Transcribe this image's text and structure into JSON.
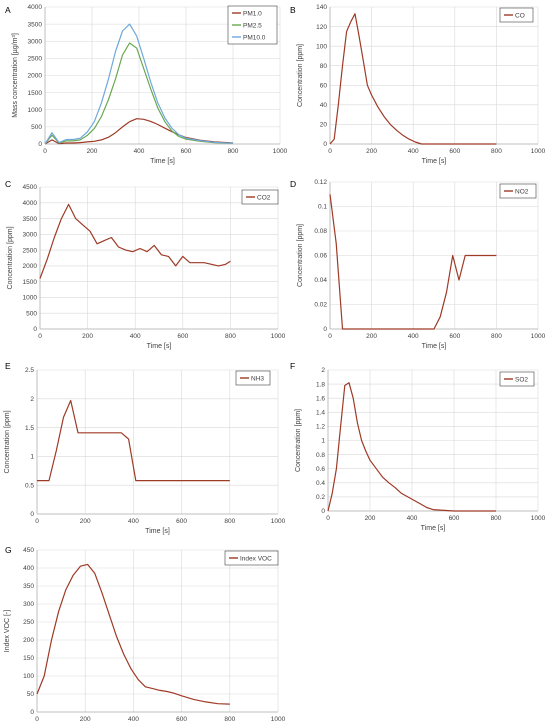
{
  "colors": {
    "pm1": "#9e3a26",
    "pm25": "#6aa84f",
    "pm10": "#6fa8dc",
    "gas": "#9e3a26"
  },
  "chart_data": [
    {
      "id": "A",
      "letter": "A",
      "type": "line",
      "xlabel": "Time [s]",
      "ylabel": "Mass concentration [µg/m³]",
      "xlim": [
        0,
        1000
      ],
      "ylim": [
        0,
        4000
      ],
      "xticks": [
        0,
        200,
        400,
        600,
        800,
        1000
      ],
      "yticks": [
        0,
        500,
        1000,
        1500,
        2000,
        2500,
        3000,
        3500,
        4000
      ],
      "legend": "top-right",
      "series": [
        {
          "name": "PM1.0",
          "color": "#9e3a26",
          "x": [
            0,
            30,
            60,
            90,
            120,
            150,
            180,
            210,
            240,
            270,
            300,
            330,
            360,
            390,
            420,
            450,
            480,
            510,
            540,
            570,
            600,
            660,
            720,
            800
          ],
          "y": [
            0,
            120,
            10,
            30,
            30,
            40,
            60,
            80,
            120,
            200,
            330,
            500,
            650,
            740,
            720,
            660,
            570,
            460,
            360,
            270,
            190,
            110,
            60,
            30
          ]
        },
        {
          "name": "PM2.5",
          "color": "#6aa84f",
          "x": [
            0,
            30,
            60,
            90,
            120,
            150,
            180,
            210,
            240,
            270,
            300,
            330,
            360,
            390,
            420,
            450,
            480,
            510,
            540,
            570,
            600,
            660,
            720,
            800
          ],
          "y": [
            0,
            260,
            30,
            90,
            90,
            120,
            250,
            450,
            800,
            1300,
            1900,
            2600,
            2950,
            2800,
            2200,
            1600,
            1050,
            650,
            380,
            220,
            140,
            80,
            40,
            20
          ]
        },
        {
          "name": "PM10.0",
          "color": "#6fa8dc",
          "x": [
            0,
            30,
            60,
            90,
            120,
            150,
            180,
            210,
            240,
            270,
            300,
            330,
            360,
            390,
            420,
            450,
            480,
            510,
            540,
            570,
            600,
            660,
            720,
            800
          ],
          "y": [
            0,
            330,
            40,
            130,
            130,
            170,
            350,
            650,
            1200,
            1900,
            2700,
            3300,
            3500,
            3150,
            2500,
            1800,
            1200,
            760,
            460,
            270,
            170,
            100,
            50,
            20
          ]
        }
      ]
    },
    {
      "id": "B",
      "letter": "B",
      "type": "line",
      "xlabel": "Time [s]",
      "ylabel": "Concentration [ppm]",
      "xlim": [
        0,
        1000
      ],
      "ylim": [
        0,
        140
      ],
      "xticks": [
        0,
        200,
        400,
        600,
        800,
        1000
      ],
      "yticks": [
        0,
        20,
        40,
        60,
        80,
        100,
        120,
        140
      ],
      "legend": "top-right",
      "series": [
        {
          "name": "CO",
          "color": "#9e3a26",
          "x": [
            0,
            20,
            40,
            60,
            80,
            100,
            120,
            140,
            160,
            180,
            200,
            230,
            260,
            290,
            320,
            350,
            380,
            410,
            440,
            470,
            500,
            550,
            600,
            650,
            700,
            800
          ],
          "y": [
            0,
            5,
            40,
            80,
            115,
            125,
            133,
            110,
            85,
            60,
            50,
            38,
            28,
            20,
            14,
            9,
            5,
            2,
            0,
            0,
            0,
            0,
            0,
            0,
            0,
            0
          ]
        }
      ]
    },
    {
      "id": "C",
      "letter": "C",
      "type": "line",
      "xlabel": "Time [s]",
      "ylabel": "Concentration [ppm]",
      "xlim": [
        0,
        1000
      ],
      "ylim": [
        0,
        4500
      ],
      "xticks": [
        0,
        200,
        400,
        600,
        800,
        1000
      ],
      "yticks": [
        0,
        500,
        1000,
        1500,
        2000,
        2500,
        3000,
        3500,
        4000,
        4500
      ],
      "legend": "top-right",
      "series": [
        {
          "name": "CO2",
          "color": "#9e3a26",
          "x": [
            0,
            30,
            60,
            90,
            120,
            150,
            180,
            210,
            240,
            270,
            300,
            330,
            360,
            390,
            420,
            450,
            480,
            510,
            540,
            570,
            600,
            630,
            660,
            690,
            720,
            750,
            780,
            800
          ],
          "y": [
            1600,
            2200,
            2900,
            3500,
            3950,
            3500,
            3300,
            3100,
            2700,
            2800,
            2900,
            2600,
            2500,
            2450,
            2550,
            2450,
            2650,
            2350,
            2300,
            2000,
            2300,
            2100,
            2100,
            2100,
            2050,
            2000,
            2050,
            2150
          ]
        }
      ]
    },
    {
      "id": "D",
      "letter": "D",
      "type": "line",
      "xlabel": "Time [s]",
      "ylabel": "Concentration [ppm]",
      "xlim": [
        0,
        1000
      ],
      "ylim": [
        0,
        0.12
      ],
      "xticks": [
        0,
        200,
        400,
        600,
        800,
        1000
      ],
      "yticks": [
        0,
        0.02,
        0.04,
        0.06,
        0.08,
        0.1,
        0.12
      ],
      "legend": "top-right",
      "series": [
        {
          "name": "NO2",
          "color": "#9e3a26",
          "x": [
            0,
            30,
            60,
            90,
            120,
            200,
            300,
            400,
            500,
            530,
            560,
            590,
            620,
            650,
            700,
            800
          ],
          "y": [
            0.11,
            0.07,
            0,
            0,
            0,
            0,
            0,
            0,
            0,
            0.01,
            0.03,
            0.06,
            0.04,
            0.06,
            0.06,
            0.06
          ]
        }
      ]
    },
    {
      "id": "E",
      "letter": "E",
      "type": "line",
      "xlabel": "Time [s]",
      "ylabel": "Concentration [ppm]",
      "xlim": [
        0,
        1000
      ],
      "ylim": [
        0,
        2.5
      ],
      "xticks": [
        0,
        200,
        400,
        600,
        800,
        1000
      ],
      "yticks": [
        0,
        0.5,
        1,
        1.5,
        2,
        2.5
      ],
      "legend": "top-right",
      "series": [
        {
          "name": "NH3",
          "color": "#9e3a26",
          "x": [
            0,
            20,
            50,
            80,
            110,
            140,
            170,
            200,
            230,
            260,
            290,
            320,
            350,
            380,
            410,
            500,
            600,
            700,
            800
          ],
          "y": [
            0.58,
            0.58,
            0.58,
            1.1,
            1.68,
            1.97,
            1.41,
            1.41,
            1.41,
            1.41,
            1.41,
            1.41,
            1.41,
            1.3,
            0.58,
            0.58,
            0.58,
            0.58,
            0.58
          ]
        }
      ]
    },
    {
      "id": "F",
      "letter": "F",
      "type": "line",
      "xlabel": "Time [s]",
      "ylabel": "Concentration [ppm]",
      "xlim": [
        0,
        1000
      ],
      "ylim": [
        0,
        2
      ],
      "xticks": [
        0,
        200,
        400,
        600,
        800,
        1000
      ],
      "yticks": [
        0,
        0.2,
        0.4,
        0.6,
        0.8,
        1,
        1.2,
        1.4,
        1.6,
        1.8,
        2
      ],
      "legend": "top-right",
      "series": [
        {
          "name": "SO2",
          "color": "#9e3a26",
          "x": [
            0,
            20,
            40,
            60,
            80,
            100,
            120,
            140,
            160,
            180,
            200,
            230,
            260,
            290,
            320,
            350,
            380,
            410,
            440,
            470,
            500,
            600,
            700,
            800
          ],
          "y": [
            0,
            0.25,
            0.6,
            1.2,
            1.78,
            1.82,
            1.6,
            1.25,
            1.0,
            0.85,
            0.72,
            0.6,
            0.48,
            0.4,
            0.33,
            0.25,
            0.2,
            0.15,
            0.1,
            0.05,
            0.02,
            0,
            0,
            0
          ]
        }
      ]
    },
    {
      "id": "G",
      "letter": "G",
      "type": "line",
      "xlabel": "Time [s]",
      "ylabel": "Index VOC [-]",
      "xlim": [
        0,
        1000
      ],
      "ylim": [
        0,
        450
      ],
      "xticks": [
        0,
        200,
        400,
        600,
        800,
        1000
      ],
      "yticks": [
        0,
        50,
        100,
        150,
        200,
        250,
        300,
        350,
        400,
        450
      ],
      "legend": "top-right",
      "series": [
        {
          "name": "Index VOC",
          "color": "#9e3a26",
          "x": [
            0,
            30,
            60,
            90,
            120,
            150,
            180,
            210,
            240,
            270,
            300,
            330,
            360,
            390,
            420,
            450,
            480,
            510,
            540,
            570,
            600,
            650,
            700,
            750,
            800
          ],
          "y": [
            50,
            100,
            200,
            280,
            340,
            380,
            405,
            410,
            385,
            330,
            270,
            210,
            160,
            120,
            90,
            70,
            65,
            60,
            57,
            52,
            45,
            35,
            28,
            23,
            22
          ]
        }
      ]
    }
  ]
}
